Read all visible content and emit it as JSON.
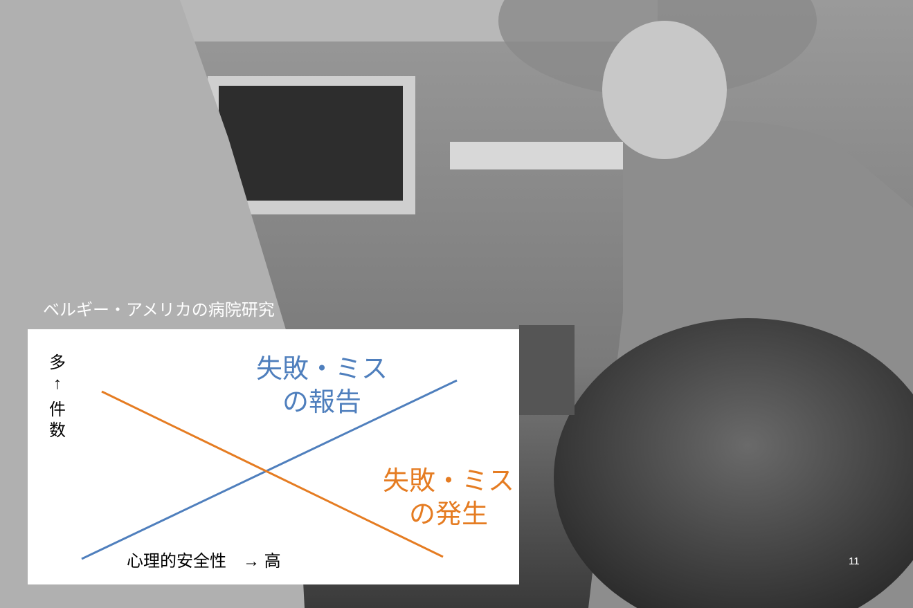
{
  "caption": "ベルギー・アメリカの病院研究",
  "diagram": {
    "y_axis_label": "多↑件数",
    "x_axis_label": "心理的安全性　→ 高",
    "lines": [
      {
        "label_lines": [
          "失敗・ミス",
          "の報告"
        ],
        "color": "#4f7fbd"
      },
      {
        "label_lines": [
          "失敗・ミス",
          "の発生"
        ],
        "color": "#e57c22"
      }
    ]
  },
  "page_number": "11"
}
